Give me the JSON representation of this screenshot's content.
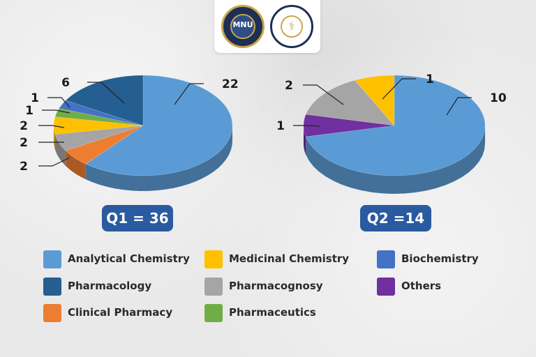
{
  "chart_data": [
    {
      "type": "pie",
      "title": "Q1 = 36",
      "total": 36,
      "categories": [
        "Analytical Chemistry",
        "Clinical Pharmacy",
        "Pharmacognosy",
        "Medicinal Chemistry",
        "Pharmaceutics",
        "Biochemistry",
        "Pharmacology"
      ],
      "values": [
        22,
        2,
        2,
        2,
        1,
        1,
        6
      ],
      "data_labels": [
        "22",
        "2",
        "2",
        "2",
        "1",
        "1",
        "6"
      ],
      "colors": [
        "#5b9bd5",
        "#ed7d31",
        "#a5a5a5",
        "#ffc000",
        "#70ad47",
        "#4472c4",
        "#255e91"
      ],
      "style": "3d"
    },
    {
      "type": "pie",
      "title": "Q2 =14",
      "total": 14,
      "categories": [
        "Analytical Chemistry",
        "Others",
        "Pharmacognosy",
        "Medicinal Chemistry"
      ],
      "values": [
        10,
        1,
        2,
        1
      ],
      "data_labels": [
        "10",
        "1",
        "2",
        "1"
      ],
      "colors": [
        "#5b9bd5",
        "#7030a0",
        "#a5a5a5",
        "#ffc000"
      ],
      "style": "3d"
    }
  ],
  "legend": {
    "items": [
      {
        "label": "Analytical Chemistry",
        "color": "#5b9bd5"
      },
      {
        "label": "Medicinal Chemistry",
        "color": "#ffc000"
      },
      {
        "label": "Biochemistry",
        "color": "#4472c4"
      },
      {
        "label": "Pharmacology",
        "color": "#255e91"
      },
      {
        "label": "Pharmacognosy",
        "color": "#a5a5a5"
      },
      {
        "label": "Others",
        "color": "#7030a0"
      },
      {
        "label": "Clinical Pharmacy",
        "color": "#ed7d31"
      },
      {
        "label": "Pharmaceutics",
        "color": "#70ad47"
      }
    ]
  },
  "logos": {
    "left_text": "MNU"
  }
}
